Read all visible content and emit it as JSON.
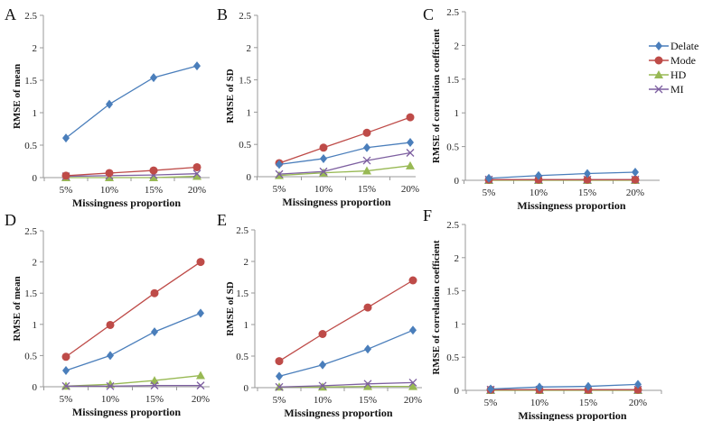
{
  "chart_data": [
    {
      "type": "line",
      "panel_label": "A",
      "xlabel": "Missingness proportion",
      "ylabel": "RMSE  of mean",
      "ylim": [
        0,
        2.5
      ],
      "yticks": [
        "0",
        "0.5",
        "1",
        "1.5",
        "2",
        "2.5"
      ],
      "categories": [
        "5%",
        "10%",
        "15%",
        "20%"
      ],
      "series": [
        {
          "name": "Delate",
          "values": [
            0.61,
            1.13,
            1.54,
            1.72
          ]
        },
        {
          "name": "Mode",
          "values": [
            0.03,
            0.07,
            0.11,
            0.16
          ]
        },
        {
          "name": "HD",
          "values": [
            0.0,
            0.0,
            0.0,
            0.02
          ]
        },
        {
          "name": "MI",
          "values": [
            0.02,
            0.03,
            0.04,
            0.06
          ]
        }
      ]
    },
    {
      "type": "line",
      "panel_label": "B",
      "xlabel": "Missingness proportion",
      "ylabel": "RMSE of SD",
      "ylim": [
        0,
        2.5
      ],
      "yticks": [
        "0",
        "0.5",
        "1",
        "1.5",
        "2",
        "2.5"
      ],
      "categories": [
        "5%",
        "10%",
        "15%",
        "20%"
      ],
      "series": [
        {
          "name": "Delate",
          "values": [
            0.19,
            0.28,
            0.45,
            0.53
          ]
        },
        {
          "name": "Mode",
          "values": [
            0.21,
            0.45,
            0.68,
            0.92
          ]
        },
        {
          "name": "HD",
          "values": [
            0.02,
            0.06,
            0.09,
            0.17
          ]
        },
        {
          "name": "MI",
          "values": [
            0.04,
            0.08,
            0.25,
            0.37
          ]
        }
      ]
    },
    {
      "type": "line",
      "panel_label": "C",
      "xlabel": "Missingness proportion",
      "ylabel": "RMSE of correlation coefficient",
      "ylim": [
        0,
        2.5
      ],
      "yticks": [
        "0",
        "0.5",
        "1",
        "1.5",
        "2",
        "2.5"
      ],
      "categories": [
        "5%",
        "10%",
        "15%",
        "20%"
      ],
      "series": [
        {
          "name": "Delate",
          "values": [
            0.03,
            0.07,
            0.1,
            0.12
          ]
        },
        {
          "name": "Mode",
          "values": [
            0.01,
            0.01,
            0.01,
            0.01
          ]
        },
        {
          "name": "HD",
          "values": [
            0.0,
            0.0,
            0.0,
            0.0
          ]
        },
        {
          "name": "MI",
          "values": [
            0.01,
            0.01,
            0.01,
            0.01
          ]
        }
      ]
    },
    {
      "type": "line",
      "panel_label": "D",
      "xlabel": "Missingness proportion",
      "ylabel": "RMSE  of mean",
      "ylim": [
        0,
        2.5
      ],
      "yticks": [
        "0",
        "0.5",
        "1",
        "1.5",
        "2",
        "2.5"
      ],
      "categories": [
        "5%",
        "10%",
        "15%",
        "20%"
      ],
      "series": [
        {
          "name": "Delate",
          "values": [
            0.26,
            0.5,
            0.88,
            1.18
          ]
        },
        {
          "name": "Mode",
          "values": [
            0.48,
            0.99,
            1.5,
            2.0
          ]
        },
        {
          "name": "HD",
          "values": [
            0.01,
            0.04,
            0.1,
            0.18
          ]
        },
        {
          "name": "MI",
          "values": [
            0.01,
            0.01,
            0.02,
            0.02
          ]
        }
      ]
    },
    {
      "type": "line",
      "panel_label": "E",
      "xlabel": "Missingness proportion",
      "ylabel": "RMSE of SD",
      "ylim": [
        0,
        2.5
      ],
      "yticks": [
        "0",
        "0.5",
        "1",
        "1.5",
        "2",
        "2.5"
      ],
      "categories": [
        "5%",
        "10%",
        "15%",
        "20%"
      ],
      "series": [
        {
          "name": "Delate",
          "values": [
            0.18,
            0.36,
            0.61,
            0.91
          ]
        },
        {
          "name": "Mode",
          "values": [
            0.42,
            0.85,
            1.27,
            1.7
          ]
        },
        {
          "name": "HD",
          "values": [
            0.01,
            0.01,
            0.02,
            0.02
          ]
        },
        {
          "name": "MI",
          "values": [
            0.01,
            0.03,
            0.06,
            0.08
          ]
        }
      ]
    },
    {
      "type": "line",
      "panel_label": "F",
      "xlabel": "Missingness proportion",
      "ylabel": "RMSE  of correlation  coefficient",
      "ylim": [
        0,
        2.5
      ],
      "yticks": [
        "0",
        "0.5",
        "1",
        "1.5",
        "2",
        "2.5"
      ],
      "categories": [
        "5%",
        "10%",
        "15%",
        "20%"
      ],
      "series": [
        {
          "name": "Delate",
          "values": [
            0.02,
            0.05,
            0.06,
            0.09
          ]
        },
        {
          "name": "Mode",
          "values": [
            0.01,
            0.01,
            0.01,
            0.01
          ]
        },
        {
          "name": "HD",
          "values": [
            0.0,
            0.0,
            0.0,
            0.0
          ]
        },
        {
          "name": "MI",
          "values": [
            0.01,
            0.01,
            0.01,
            0.01
          ]
        }
      ]
    }
  ],
  "legend": {
    "placement": "right",
    "entries": [
      {
        "name": "Delate",
        "color": "#4a7ebb",
        "marker": "diamond"
      },
      {
        "name": "Mode",
        "color": "#be4b48",
        "marker": "circle"
      },
      {
        "name": "HD",
        "color": "#98b954",
        "marker": "triangle"
      },
      {
        "name": "MI",
        "color": "#7d5fa0",
        "marker": "x"
      }
    ]
  }
}
